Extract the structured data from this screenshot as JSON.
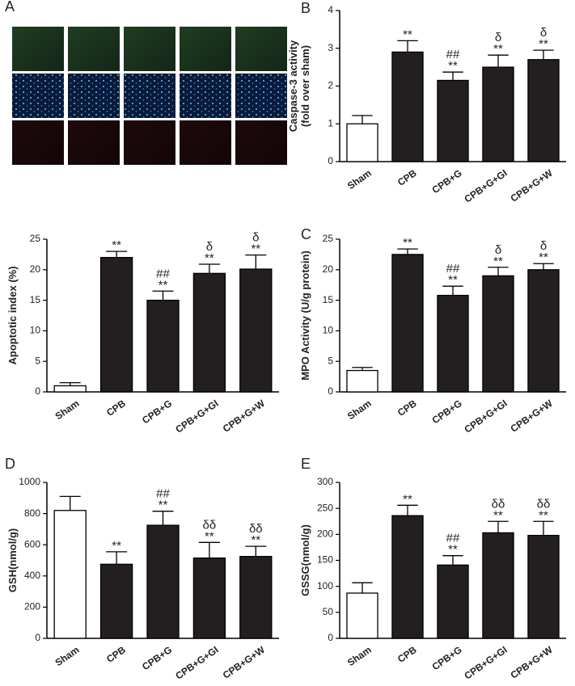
{
  "panel_a": {
    "label": "A"
  },
  "chart_data": [
    {
      "type": "bar",
      "panel_label": "B",
      "ylabel": [
        "Caspase-3 activity",
        "(fold over sham)"
      ],
      "categories": [
        "Sham",
        "CPB",
        "CPB+G",
        "CPB+G+GI",
        "CPB+G+W"
      ],
      "values": [
        1.0,
        2.9,
        2.15,
        2.5,
        2.7
      ],
      "errors": [
        0.22,
        0.3,
        0.22,
        0.32,
        0.25
      ],
      "colors": [
        "#ffffff",
        "#231f20",
        "#231f20",
        "#231f20",
        "#231f20"
      ],
      "annotations": [
        [],
        [
          "**"
        ],
        [
          "**",
          "##"
        ],
        [
          "**",
          "δ"
        ],
        [
          "**",
          "δ"
        ]
      ],
      "ylim": [
        0,
        4
      ],
      "yticks": [
        0,
        1,
        2,
        3,
        4
      ]
    },
    {
      "type": "bar",
      "ylabel": [
        "Apoptotic index (%)"
      ],
      "categories": [
        "Sham",
        "CPB",
        "CPB+G",
        "CPB+G+GI",
        "CPB+G+W"
      ],
      "values": [
        1.0,
        22,
        15,
        19.4,
        20.1
      ],
      "errors": [
        0.5,
        1.0,
        1.5,
        1.5,
        2.3
      ],
      "colors": [
        "#ffffff",
        "#231f20",
        "#231f20",
        "#231f20",
        "#231f20"
      ],
      "annotations": [
        [],
        [
          "**"
        ],
        [
          "**",
          "##"
        ],
        [
          "**",
          "δ"
        ],
        [
          "**",
          "δ"
        ]
      ],
      "ylim": [
        0,
        25
      ],
      "yticks": [
        0,
        5,
        10,
        15,
        20,
        25
      ]
    },
    {
      "type": "bar",
      "panel_label": "C",
      "ylabel": [
        "MPO Activity (U/g protein)"
      ],
      "categories": [
        "Sham",
        "CPB",
        "CPB+G",
        "CPB+G+GI",
        "CPB+G+W"
      ],
      "values": [
        3.5,
        22.5,
        15.8,
        19,
        20
      ],
      "errors": [
        0.5,
        0.9,
        1.5,
        1.4,
        1.0
      ],
      "colors": [
        "#ffffff",
        "#231f20",
        "#231f20",
        "#231f20",
        "#231f20"
      ],
      "annotations": [
        [],
        [
          "**"
        ],
        [
          "**",
          "##"
        ],
        [
          "**",
          "δ"
        ],
        [
          "**",
          "δ"
        ]
      ],
      "ylim": [
        0,
        25
      ],
      "yticks": [
        0,
        5,
        10,
        15,
        20,
        25
      ]
    },
    {
      "type": "bar",
      "panel_label": "D",
      "ylabel": [
        "GSH(nmol/g)"
      ],
      "categories": [
        "Sham",
        "CPB",
        "CPB+G",
        "CPB+G+GI",
        "CPB+G+W"
      ],
      "values": [
        820,
        475,
        725,
        515,
        525
      ],
      "errors": [
        90,
        80,
        90,
        100,
        65
      ],
      "colors": [
        "#ffffff",
        "#231f20",
        "#231f20",
        "#231f20",
        "#231f20"
      ],
      "annotations": [
        [],
        [
          "**"
        ],
        [
          "**",
          "##"
        ],
        [
          "**",
          "δδ"
        ],
        [
          "**",
          "δδ"
        ]
      ],
      "ylim": [
        0,
        1000
      ],
      "yticks": [
        0,
        200,
        400,
        600,
        800,
        1000
      ]
    },
    {
      "type": "bar",
      "panel_label": "E",
      "ylabel": [
        "GSSG(nmol/g)"
      ],
      "categories": [
        "Sham",
        "CPB",
        "CPB+G",
        "CPB+G+GI",
        "CPB+G+W"
      ],
      "values": [
        87,
        236,
        141,
        203,
        198
      ],
      "errors": [
        20,
        20,
        18,
        22,
        27
      ],
      "colors": [
        "#ffffff",
        "#231f20",
        "#231f20",
        "#231f20",
        "#231f20"
      ],
      "annotations": [
        [],
        [
          "**"
        ],
        [
          "**",
          "##"
        ],
        [
          "**",
          "δδ"
        ],
        [
          "**",
          "δδ"
        ]
      ],
      "ylim": [
        0,
        300
      ],
      "yticks": [
        0,
        50,
        100,
        150,
        200,
        250,
        300
      ]
    }
  ]
}
